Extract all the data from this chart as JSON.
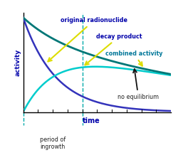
{
  "bg_color": "#ffffff",
  "curve_t_max": 10.0,
  "lam1": 0.45,
  "lam2": 0.07,
  "decay_scale": 0.48,
  "radionuclide_color": "#3333bb",
  "decay_product_color": "#00cccc",
  "combined_color": "#007777",
  "vline_x": 4.0,
  "vline_color": "#00aaaa",
  "xlabel": "time",
  "ylabel": "activity",
  "xlabel_color": "#0000aa",
  "ylabel_color": "#0000aa",
  "label_radionuclide": "original radionuclide",
  "label_decay_product": "decay product",
  "label_combined": "combined activity",
  "label_no_eq": "no equilibrium",
  "label_period": "period of\ningrowth",
  "text_color_blue": "#0000aa",
  "text_color_teal": "#007799",
  "text_color_dark": "#222222",
  "ylim": [
    0,
    1.05
  ],
  "xlim": [
    0,
    10
  ]
}
